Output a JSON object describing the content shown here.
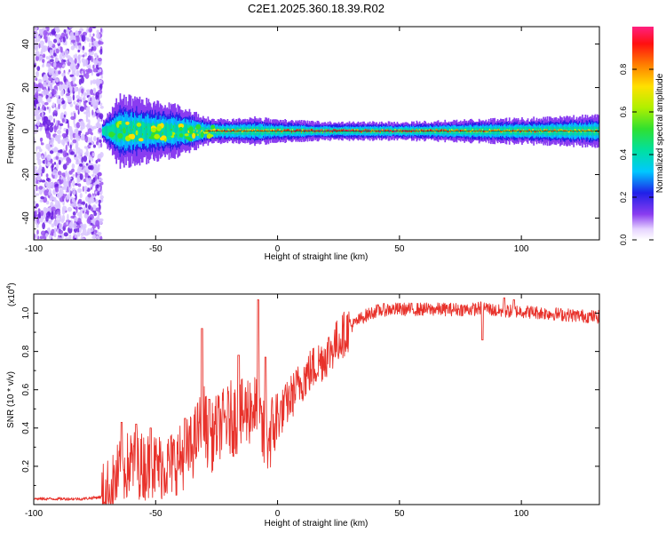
{
  "page": {
    "title": "C2E1.2025.360.18.39.R02"
  },
  "colors": {
    "snr_line": "#e8322b",
    "noise_purple": "#8a3cf0",
    "band_blue": "#2020e8"
  },
  "chart_data": [
    {
      "type": "heatmap",
      "title": "C2E1.2025.360.18.39.R02",
      "xlabel": "Height of straight line (km)",
      "ylabel": "Frequency (Hz)",
      "xlim": [
        -100,
        132
      ],
      "ylim": [
        -50,
        48
      ],
      "xticks": [
        -100,
        -50,
        0,
        50,
        100
      ],
      "xtick_labels": [
        "-100",
        "-50",
        "0",
        "50",
        "100"
      ],
      "yticks": [
        -40,
        -20,
        0,
        20,
        40
      ],
      "ytick_labels": [
        "-40",
        "-20",
        "0",
        "20",
        "40"
      ],
      "noise_region_x": [
        -100,
        -72
      ],
      "band_center_hz": 0,
      "band": [
        {
          "x": -72,
          "halfwidth": 2,
          "peak": 0.4
        },
        {
          "x": -65,
          "halfwidth": 8,
          "peak": 0.5
        },
        {
          "x": -55,
          "halfwidth": 7,
          "peak": 0.5
        },
        {
          "x": -45,
          "halfwidth": 6,
          "peak": 0.45
        },
        {
          "x": -38,
          "halfwidth": 5,
          "peak": 0.45
        },
        {
          "x": -30,
          "halfwidth": 3,
          "peak": 0.8
        },
        {
          "x": -20,
          "halfwidth": 2.5,
          "peak": 0.9
        },
        {
          "x": -10,
          "halfwidth": 3,
          "peak": 0.75
        },
        {
          "x": 0,
          "halfwidth": 2.5,
          "peak": 0.85
        },
        {
          "x": 20,
          "halfwidth": 2,
          "peak": 0.95
        },
        {
          "x": 50,
          "halfwidth": 2,
          "peak": 0.92
        },
        {
          "x": 80,
          "halfwidth": 2.5,
          "peak": 0.8
        },
        {
          "x": 110,
          "halfwidth": 3,
          "peak": 0.8
        },
        {
          "x": 132,
          "halfwidth": 3.5,
          "peak": 0.7
        }
      ],
      "colorbar": {
        "label": "Normalized spectral amplitude",
        "range": [
          0,
          1
        ],
        "ticks": [
          0.0,
          0.2,
          0.4,
          0.6,
          0.8
        ],
        "tick_labels": [
          "0.0",
          "0.2",
          "0.4",
          "0.6",
          "0.8"
        ]
      }
    },
    {
      "type": "line",
      "xlabel": "Height of straight line (km)",
      "ylabel": "SNR (10 * v/v)",
      "y_multiplier": "(x10",
      "y_multiplier_exp": "4",
      "xlim": [
        -100,
        132
      ],
      "ylim": [
        0,
        1.1
      ],
      "xticks": [
        -100,
        -50,
        0,
        50,
        100
      ],
      "xtick_labels": [
        "-100",
        "-50",
        "0",
        "50",
        "100"
      ],
      "yticks": [
        0.2,
        0.4,
        0.6,
        0.8,
        1.0
      ],
      "ytick_labels": [
        "0.2",
        "0.4",
        "0.6",
        "0.8",
        "1.0"
      ],
      "series": [
        {
          "name": "SNR",
          "x": [
            -100,
            -90,
            -80,
            -72,
            -68,
            -65,
            -60,
            -55,
            -50,
            -45,
            -40,
            -35,
            -32,
            -30,
            -28,
            -25,
            -20,
            -15,
            -12,
            -10,
            -8,
            -5,
            0,
            5,
            10,
            15,
            20,
            25,
            30,
            35,
            40,
            45,
            50,
            60,
            70,
            80,
            85,
            90,
            100,
            110,
            120,
            132
          ],
          "y": [
            0.03,
            0.03,
            0.03,
            0.04,
            0.08,
            0.16,
            0.22,
            0.2,
            0.2,
            0.2,
            0.24,
            0.3,
            0.4,
            0.45,
            0.32,
            0.4,
            0.45,
            0.45,
            0.5,
            0.52,
            0.45,
            0.32,
            0.45,
            0.55,
            0.65,
            0.72,
            0.78,
            0.86,
            0.93,
            0.98,
            1.01,
            1.02,
            1.02,
            1.02,
            1.02,
            1.02,
            1.03,
            1.01,
            1.01,
            1.0,
            0.99,
            0.98
          ]
        }
      ],
      "spikes": [
        {
          "x": -64,
          "y": 0.43
        },
        {
          "x": -58,
          "y": 0.42
        },
        {
          "x": -52,
          "y": 0.4
        },
        {
          "x": -38,
          "y": 0.45
        },
        {
          "x": -31,
          "y": 0.92
        },
        {
          "x": -28,
          "y": 0.55
        },
        {
          "x": -16,
          "y": 0.78
        },
        {
          "x": -8,
          "y": 1.07
        },
        {
          "x": -5,
          "y": 0.77
        },
        {
          "x": 84,
          "y": 1.09
        },
        {
          "x": 84,
          "y": 0.86
        },
        {
          "x": 93,
          "y": 1.08
        },
        {
          "x": 97,
          "y": 1.07
        }
      ]
    }
  ]
}
